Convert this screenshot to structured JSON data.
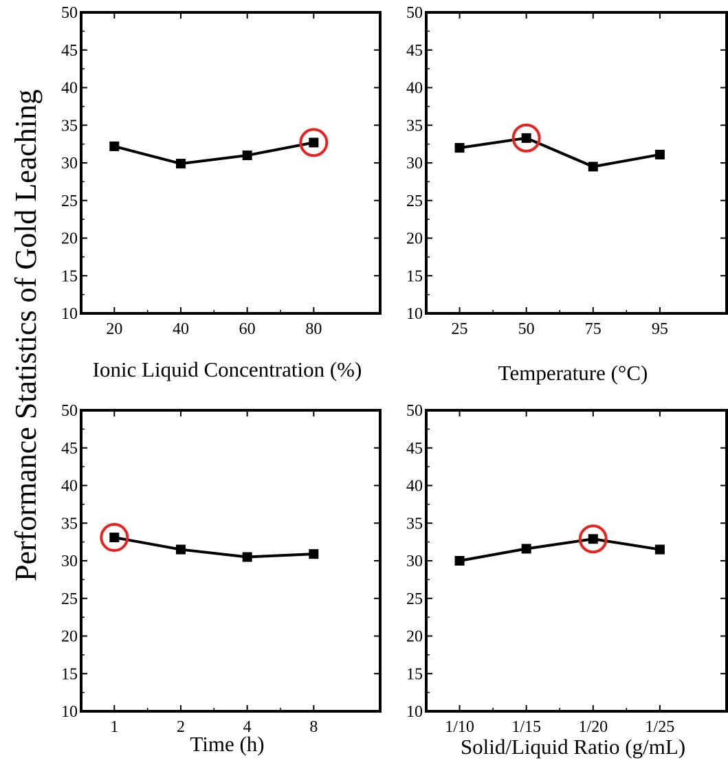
{
  "figure": {
    "shared_ylabel": "Performance Statistics of Gold Leaching"
  },
  "chart_data": [
    {
      "type": "line",
      "id": "concentration",
      "xlabel": "Ionic Liquid Concentration (%)",
      "ylabel": "Performance Statistics of Gold Leaching",
      "categories": [
        "20",
        "40",
        "60",
        "80"
      ],
      "values": [
        32.2,
        29.9,
        31.0,
        32.7
      ],
      "ylim": [
        10,
        50
      ],
      "yticks": [
        10,
        15,
        20,
        25,
        30,
        35,
        40,
        45,
        50
      ],
      "highlight_index": 3,
      "grid": false,
      "legend": "none"
    },
    {
      "type": "line",
      "id": "temperature",
      "xlabel": "Temperature (°C)",
      "ylabel": "Performance Statistics of Gold Leaching",
      "categories": [
        "25",
        "50",
        "75",
        "95"
      ],
      "values": [
        32.0,
        33.3,
        29.5,
        31.1
      ],
      "ylim": [
        10,
        50
      ],
      "yticks": [
        10,
        15,
        20,
        25,
        30,
        35,
        40,
        45,
        50
      ],
      "highlight_index": 1,
      "grid": false,
      "legend": "none"
    },
    {
      "type": "line",
      "id": "time",
      "xlabel": "Time (h)",
      "ylabel": "Performance Statistics of Gold Leaching",
      "categories": [
        "1",
        "2",
        "4",
        "8"
      ],
      "values": [
        33.1,
        31.5,
        30.5,
        30.9
      ],
      "ylim": [
        10,
        50
      ],
      "yticks": [
        10,
        15,
        20,
        25,
        30,
        35,
        40,
        45,
        50
      ],
      "highlight_index": 0,
      "grid": false,
      "legend": "none"
    },
    {
      "type": "line",
      "id": "ratio",
      "xlabel": "Solid/Liquid Ratio (g/mL)",
      "ylabel": "Performance Statistics of Gold Leaching",
      "categories": [
        "1/10",
        "1/15",
        "1/20",
        "1/25"
      ],
      "values": [
        30.0,
        31.6,
        32.9,
        31.5
      ],
      "ylim": [
        10,
        50
      ],
      "yticks": [
        10,
        15,
        20,
        25,
        30,
        35,
        40,
        45,
        50
      ],
      "highlight_index": 2,
      "grid": false,
      "legend": "none"
    }
  ],
  "colors": {
    "line": "#000000",
    "marker": "#000000",
    "highlight": "#e8231f",
    "axes": "#000000"
  }
}
